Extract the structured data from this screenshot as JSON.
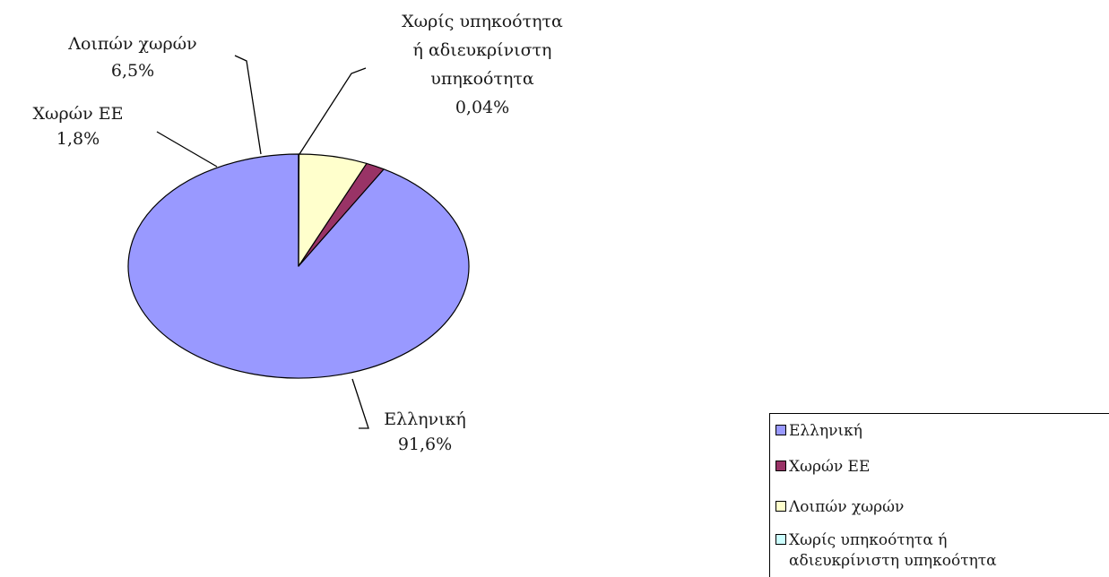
{
  "chart_data": {
    "type": "pie",
    "title": "",
    "slices": [
      {
        "label": "Ελληνική",
        "value": 91.6,
        "value_label": "91,6%",
        "color": "#9999ff"
      },
      {
        "label": "Χωρών ΕΕ",
        "value": 1.8,
        "value_label": "1,8%",
        "color": "#993366"
      },
      {
        "label": "Λοιπών χωρών",
        "value": 6.5,
        "value_label": "6,5%",
        "color": "#ffffcc"
      },
      {
        "label": "Χωρίς υπηκοότητα ή αδιευκρίνιστη υπηκοότητα",
        "value": 0.04,
        "value_label": "0,04%",
        "color": "#ccffff"
      }
    ],
    "slice_labels": [
      {
        "lines": [
          "Ελληνική",
          "91,6%"
        ]
      },
      {
        "lines": [
          "Χωρών ΕΕ",
          "1,8%"
        ]
      },
      {
        "lines": [
          "Λοιπών χωρών",
          "6,5%"
        ]
      },
      {
        "lines": [
          "Χωρίς υπηκοότητα",
          "ή αδιευκρίνιστη",
          "υπηκοότητα",
          "0,04%"
        ]
      }
    ],
    "legend": {
      "position": "bottom-right",
      "items": [
        {
          "lines": [
            "Ελληνική"
          ],
          "color": "#9999ff"
        },
        {
          "lines": [
            "Χωρών ΕΕ"
          ],
          "color": "#993366"
        },
        {
          "lines": [
            "Λοιπών χωρών"
          ],
          "color": "#ffffcc"
        },
        {
          "lines": [
            "Χωρίς υπηκοότητα ή",
            "αδιευκρίνιστη υπηκοότητα"
          ],
          "color": "#ccffff"
        }
      ]
    }
  }
}
